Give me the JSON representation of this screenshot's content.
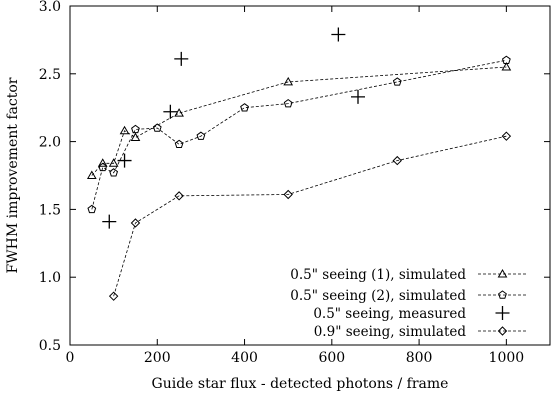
{
  "chart_data": {
    "type": "line",
    "title": "",
    "xlabel": "Guide star flux - detected photons / frame",
    "ylabel": "FWHM improvement factor",
    "xlim": [
      0,
      1100
    ],
    "ylim": [
      0.5,
      3.0
    ],
    "xticks": [
      0,
      200,
      400,
      600,
      800,
      1000
    ],
    "yticks": [
      0.5,
      1.0,
      1.5,
      2.0,
      2.5,
      3.0
    ],
    "xtick_labels": [
      "0",
      "200",
      "400",
      "600",
      "800",
      "1000"
    ],
    "ytick_labels": [
      "0.5",
      "1.0",
      "1.5",
      "2.0",
      "2.5",
      "3.0"
    ],
    "grid": false,
    "legend_position": "bottom-right",
    "series": [
      {
        "name": "0.5\" seeing (1), simulated",
        "marker": "triangle",
        "line": "dashed",
        "x": [
          50,
          75,
          100,
          125,
          150,
          250,
          500,
          1000
        ],
        "y": [
          1.75,
          1.84,
          1.84,
          2.08,
          2.03,
          2.21,
          2.44,
          2.55
        ]
      },
      {
        "name": "0.5\" seeing (2), simulated",
        "marker": "pentagon",
        "line": "dashed",
        "x": [
          50,
          75,
          100,
          150,
          200,
          250,
          300,
          400,
          500,
          750,
          1000
        ],
        "y": [
          1.5,
          1.81,
          1.77,
          2.09,
          2.1,
          1.98,
          2.04,
          2.25,
          2.28,
          2.44,
          2.6
        ]
      },
      {
        "name": "0.5\" seeing, measured",
        "marker": "plus",
        "line": "none",
        "x": [
          90,
          125,
          230,
          255,
          615,
          660
        ],
        "y": [
          1.41,
          1.86,
          2.22,
          2.61,
          2.79,
          2.33
        ]
      },
      {
        "name": "0.9\" seeing, simulated",
        "marker": "diamond",
        "line": "dashed",
        "x": [
          100,
          150,
          250,
          500,
          750,
          1000
        ],
        "y": [
          0.86,
          1.4,
          1.6,
          1.61,
          1.86,
          2.04
        ]
      }
    ]
  }
}
